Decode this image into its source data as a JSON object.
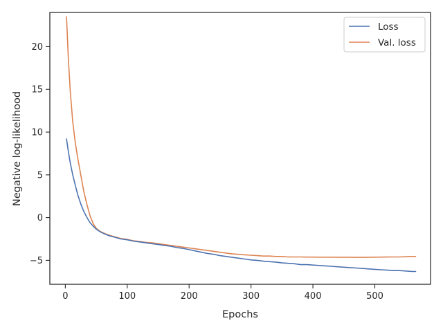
{
  "chart_data": {
    "type": "line",
    "title": "",
    "xlabel": "Epochs",
    "ylabel": "Negative log-likelihood",
    "xlim": [
      -25,
      590
    ],
    "ylim": [
      -7.8,
      24.0
    ],
    "xticks": [
      0,
      100,
      200,
      300,
      400,
      500
    ],
    "yticks": [
      -5,
      0,
      5,
      10,
      15,
      20
    ],
    "xtick_labels": [
      "0",
      "100",
      "200",
      "300",
      "400",
      "500"
    ],
    "ytick_labels": [
      "−5",
      "0",
      "5",
      "10",
      "15",
      "20"
    ],
    "grid": false,
    "legend_position": "top-right",
    "series": [
      {
        "name": "Loss",
        "color": "#4c72b0",
        "x": [
          2,
          5,
          8,
          12,
          16,
          20,
          25,
          30,
          35,
          40,
          45,
          50,
          55,
          60,
          70,
          80,
          90,
          100,
          110,
          120,
          130,
          140,
          150,
          160,
          170,
          180,
          190,
          200,
          210,
          220,
          230,
          240,
          250,
          260,
          270,
          280,
          290,
          300,
          310,
          320,
          330,
          340,
          350,
          360,
          370,
          380,
          390,
          400,
          410,
          420,
          430,
          440,
          450,
          460,
          470,
          480,
          490,
          500,
          510,
          520,
          530,
          540,
          550,
          560,
          566
        ],
        "y": [
          9.2,
          7.7,
          6.4,
          5.0,
          3.8,
          2.7,
          1.6,
          0.7,
          0.0,
          -0.6,
          -1.0,
          -1.35,
          -1.6,
          -1.8,
          -2.1,
          -2.3,
          -2.5,
          -2.6,
          -2.75,
          -2.85,
          -2.95,
          -3.05,
          -3.15,
          -3.25,
          -3.35,
          -3.5,
          -3.6,
          -3.75,
          -3.9,
          -4.05,
          -4.2,
          -4.3,
          -4.45,
          -4.55,
          -4.65,
          -4.75,
          -4.85,
          -4.95,
          -5.0,
          -5.1,
          -5.15,
          -5.2,
          -5.3,
          -5.35,
          -5.4,
          -5.5,
          -5.5,
          -5.55,
          -5.6,
          -5.65,
          -5.7,
          -5.75,
          -5.8,
          -5.85,
          -5.9,
          -5.95,
          -6.0,
          -6.05,
          -6.1,
          -6.15,
          -6.2,
          -6.2,
          -6.25,
          -6.3,
          -6.3
        ]
      },
      {
        "name": "Val. loss",
        "color": "#dd8452",
        "x": [
          2,
          5,
          8,
          12,
          16,
          20,
          25,
          30,
          35,
          40,
          45,
          50,
          55,
          60,
          70,
          80,
          90,
          100,
          110,
          120,
          130,
          140,
          150,
          160,
          170,
          180,
          190,
          200,
          210,
          220,
          230,
          240,
          250,
          260,
          270,
          280,
          290,
          300,
          310,
          320,
          330,
          340,
          350,
          360,
          370,
          380,
          390,
          400,
          410,
          420,
          430,
          440,
          450,
          460,
          470,
          480,
          490,
          500,
          510,
          520,
          530,
          540,
          550,
          560,
          566
        ],
        "y": [
          23.5,
          18.5,
          14.8,
          11.2,
          8.8,
          7.0,
          5.0,
          3.0,
          1.5,
          0.2,
          -0.7,
          -1.25,
          -1.55,
          -1.75,
          -2.05,
          -2.25,
          -2.45,
          -2.55,
          -2.7,
          -2.8,
          -2.9,
          -2.95,
          -3.05,
          -3.15,
          -3.25,
          -3.35,
          -3.45,
          -3.55,
          -3.65,
          -3.75,
          -3.85,
          -3.95,
          -4.05,
          -4.15,
          -4.25,
          -4.3,
          -4.35,
          -4.4,
          -4.45,
          -4.5,
          -4.5,
          -4.55,
          -4.55,
          -4.6,
          -4.6,
          -4.6,
          -4.62,
          -4.62,
          -4.63,
          -4.63,
          -4.63,
          -4.64,
          -4.64,
          -4.64,
          -4.65,
          -4.65,
          -4.64,
          -4.63,
          -4.62,
          -4.61,
          -4.6,
          -4.6,
          -4.58,
          -4.55,
          -4.55
        ]
      }
    ]
  }
}
